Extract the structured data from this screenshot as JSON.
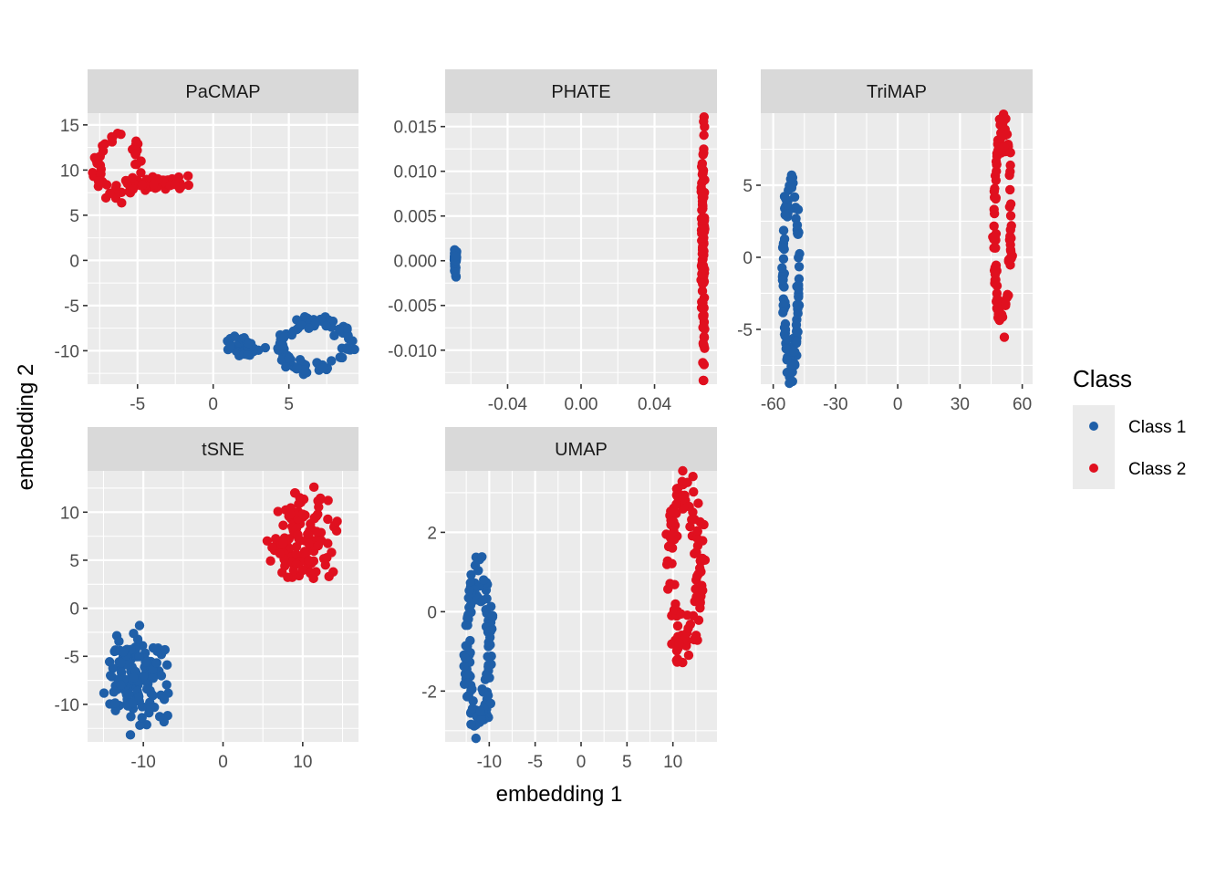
{
  "chart_data": {
    "type": "scatter",
    "xlabel": "embedding 1",
    "ylabel": "embedding 2",
    "legend": {
      "title": "Class",
      "position": "right",
      "entries": [
        {
          "name": "Class 1",
          "color": "#1F5FA8"
        },
        {
          "name": "Class 2",
          "color": "#E0101F"
        }
      ]
    },
    "grid": true,
    "panels": [
      {
        "title": "PaCMAP",
        "xlim": [
          -8.3,
          9.6
        ],
        "ylim": [
          -13.7,
          16.3
        ],
        "xticks": [
          -5,
          0,
          5
        ],
        "xtick_labels": [
          "-5",
          "0",
          "5"
        ],
        "yticks": [
          -10,
          -5,
          0,
          5,
          10,
          15
        ],
        "ytick_labels": [
          "-10",
          "-5",
          "0",
          "5",
          "10",
          "15"
        ],
        "clusters": [
          {
            "class": "Class 1",
            "n": 90,
            "shape": "ring",
            "cx": 6.7,
            "cy": -9.4,
            "rx": 2.2,
            "ry": 2.6,
            "thick": 0.25
          },
          {
            "class": "Class 1",
            "n": 45,
            "shape": "blob",
            "cx": 2.1,
            "cy": -9.6,
            "rx": 1.0,
            "ry": 1.0
          },
          {
            "class": "Class 2",
            "n": 60,
            "shape": "ring",
            "cx": -6.3,
            "cy": 10.4,
            "rx": 1.4,
            "ry": 3.3,
            "thick": 0.25
          },
          {
            "class": "Class 2",
            "n": 40,
            "shape": "blob",
            "cx": -3.6,
            "cy": 8.6,
            "rx": 1.9,
            "ry": 0.8
          }
        ]
      },
      {
        "title": "PHATE",
        "xlim": [
          -0.074,
          0.074
        ],
        "ylim": [
          -0.0138,
          0.0165
        ],
        "xticks": [
          -0.04,
          0.0,
          0.04
        ],
        "xtick_labels": [
          "-0.04",
          "0.00",
          "0.04"
        ],
        "yticks": [
          -0.01,
          -0.005,
          0.0,
          0.005,
          0.01,
          0.015
        ],
        "ytick_labels": [
          "-0.010",
          "-0.005",
          "0.000",
          "0.005",
          "0.010",
          "0.015"
        ],
        "clusters": [
          {
            "class": "Class 1",
            "n": 60,
            "shape": "blob",
            "cx": -0.0685,
            "cy": 0.0,
            "rx": 0.0006,
            "ry": 0.0014
          },
          {
            "class": "Class 2",
            "n": 110,
            "shape": "blob",
            "cx": 0.0665,
            "cy": 0.001,
            "rx": 0.0009,
            "ry": 0.0135
          }
        ]
      },
      {
        "title": "TriMAP",
        "xlim": [
          -66,
          65
        ],
        "ylim": [
          -8.8,
          10.0
        ],
        "xticks": [
          -60,
          -30,
          0,
          30,
          60
        ],
        "xtick_labels": [
          "-60",
          "-30",
          "0",
          "30",
          "60"
        ],
        "yticks": [
          -5,
          0,
          5
        ],
        "ytick_labels": [
          "-5",
          "0",
          "5"
        ],
        "clusters": [
          {
            "class": "Class 1",
            "n": 110,
            "shape": "ring",
            "cx": -51.5,
            "cy": -1.3,
            "rx": 3.6,
            "ry": 6.4,
            "thick": 0.2
          },
          {
            "class": "Class 2",
            "n": 110,
            "shape": "ring",
            "cx": 50.5,
            "cy": 2.2,
            "rx": 4.0,
            "ry": 6.4,
            "thick": 0.2
          }
        ]
      },
      {
        "title": "tSNE",
        "xlim": [
          -17,
          17
        ],
        "ylim": [
          -13.9,
          14.3
        ],
        "xticks": [
          -10,
          0,
          10
        ],
        "xtick_labels": [
          "-10",
          "0",
          "10"
        ],
        "yticks": [
          -10,
          -5,
          0,
          5,
          10
        ],
        "ytick_labels": [
          "-10",
          "-5",
          "0",
          "5",
          "10"
        ],
        "clusters": [
          {
            "class": "Class 1",
            "n": 130,
            "shape": "blob",
            "cx": -10.8,
            "cy": -7.4,
            "rx": 3.8,
            "ry": 4.3
          },
          {
            "class": "Class 2",
            "n": 130,
            "shape": "blob",
            "cx": 10.2,
            "cy": 7.4,
            "rx": 3.8,
            "ry": 4.3
          }
        ]
      },
      {
        "title": "UMAP",
        "xlim": [
          -14.8,
          14.8
        ],
        "ylim": [
          -3.28,
          3.55
        ],
        "xticks": [
          -10,
          -5,
          0,
          5,
          10
        ],
        "xtick_labels": [
          "-10",
          "-5",
          "0",
          "5",
          "10"
        ],
        "yticks": [
          -2,
          0,
          2
        ],
        "ytick_labels": [
          "-2",
          "0",
          "2"
        ],
        "clusters": [
          {
            "class": "Class 1",
            "n": 120,
            "shape": "ring",
            "cx": -11.2,
            "cy": -0.95,
            "rx": 1.2,
            "ry": 1.85,
            "thick": 0.35
          },
          {
            "class": "Class 2",
            "n": 120,
            "shape": "ring",
            "cx": 11.3,
            "cy": 1.15,
            "rx": 1.7,
            "ry": 1.95,
            "thick": 0.35
          }
        ]
      }
    ]
  }
}
